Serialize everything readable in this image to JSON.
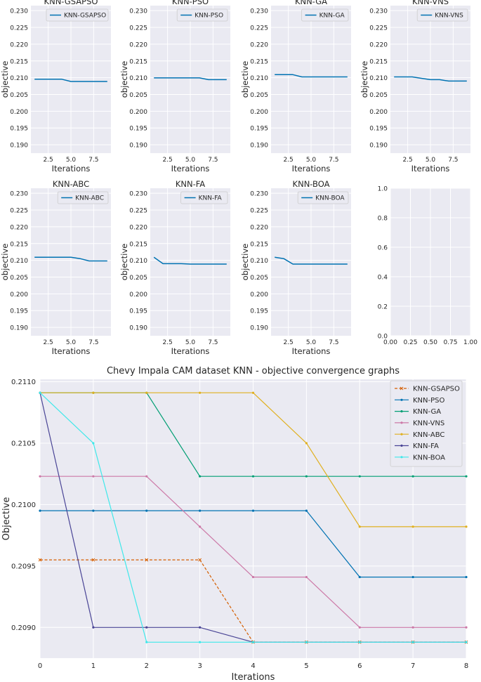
{
  "chart_data": [
    {
      "type": "line",
      "title": "KNN-GSAPSO",
      "xlabel": "Iterations",
      "ylabel": "objective",
      "xlim": [
        0.6,
        9.4
      ],
      "ylim": [
        0.1875,
        0.2315
      ],
      "xticks": [
        2.5,
        5.0,
        7.5
      ],
      "xtick_labels": [
        "2.5",
        "5.0",
        "7.5"
      ],
      "yticks": [
        0.19,
        0.195,
        0.2,
        0.205,
        0.21,
        0.215,
        0.22,
        0.225,
        0.23
      ],
      "ytick_labels": [
        "0.190",
        "0.195",
        "0.200",
        "0.205",
        "0.210",
        "0.215",
        "0.220",
        "0.225",
        "0.230"
      ],
      "legend_position": "top-right",
      "series": [
        {
          "name": "KNN-GSAPSO",
          "color": "#0072b2",
          "x": [
            1,
            2,
            3,
            4,
            5,
            6,
            7,
            8,
            9
          ],
          "y": [
            0.20955,
            0.20955,
            0.20955,
            0.20955,
            0.20888,
            0.20888,
            0.20888,
            0.20888,
            0.20888
          ]
        }
      ]
    },
    {
      "type": "line",
      "title": "KNN-PSO",
      "xlabel": "Iterations",
      "ylabel": "objective",
      "xlim": [
        0.6,
        9.4
      ],
      "ylim": [
        0.1875,
        0.2315
      ],
      "xticks": [
        2.5,
        5.0,
        7.5
      ],
      "xtick_labels": [
        "2.5",
        "5.0",
        "7.5"
      ],
      "yticks": [
        0.19,
        0.195,
        0.2,
        0.205,
        0.21,
        0.215,
        0.22,
        0.225,
        0.23
      ],
      "ytick_labels": [
        "0.190",
        "0.195",
        "0.200",
        "0.205",
        "0.210",
        "0.215",
        "0.220",
        "0.225",
        "0.230"
      ],
      "legend_position": "top-right",
      "series": [
        {
          "name": "KNN-PSO",
          "color": "#0072b2",
          "x": [
            1,
            2,
            3,
            4,
            5,
            6,
            7,
            8,
            9
          ],
          "y": [
            0.20995,
            0.20995,
            0.20995,
            0.20995,
            0.20995,
            0.20995,
            0.20941,
            0.20941,
            0.20941
          ]
        }
      ]
    },
    {
      "type": "line",
      "title": "KNN-GA",
      "xlabel": "Iterations",
      "ylabel": "objective",
      "xlim": [
        0.6,
        9.4
      ],
      "ylim": [
        0.1875,
        0.2315
      ],
      "xticks": [
        2.5,
        5.0,
        7.5
      ],
      "xtick_labels": [
        "2.5",
        "5.0",
        "7.5"
      ],
      "yticks": [
        0.19,
        0.195,
        0.2,
        0.205,
        0.21,
        0.215,
        0.22,
        0.225,
        0.23
      ],
      "ytick_labels": [
        "0.190",
        "0.195",
        "0.200",
        "0.205",
        "0.210",
        "0.215",
        "0.220",
        "0.225",
        "0.230"
      ],
      "legend_position": "top-right",
      "series": [
        {
          "name": "KNN-GA",
          "color": "#0072b2",
          "x": [
            1,
            2,
            3,
            4,
            5,
            6,
            7,
            8,
            9
          ],
          "y": [
            0.21091,
            0.21091,
            0.21091,
            0.21023,
            0.21023,
            0.21023,
            0.21023,
            0.21023,
            0.21023
          ]
        }
      ]
    },
    {
      "type": "line",
      "title": "KNN-VNS",
      "xlabel": "Iterations",
      "ylabel": "objective",
      "xlim": [
        0.6,
        9.4
      ],
      "ylim": [
        0.1875,
        0.2315
      ],
      "xticks": [
        2.5,
        5.0,
        7.5
      ],
      "xtick_labels": [
        "2.5",
        "5.0",
        "7.5"
      ],
      "yticks": [
        0.19,
        0.195,
        0.2,
        0.205,
        0.21,
        0.215,
        0.22,
        0.225,
        0.23
      ],
      "ytick_labels": [
        "0.190",
        "0.195",
        "0.200",
        "0.205",
        "0.210",
        "0.215",
        "0.220",
        "0.225",
        "0.230"
      ],
      "legend_position": "top-right",
      "series": [
        {
          "name": "KNN-VNS",
          "color": "#0072b2",
          "x": [
            1,
            2,
            3,
            4,
            5,
            6,
            7,
            8,
            9
          ],
          "y": [
            0.21023,
            0.21023,
            0.21023,
            0.20982,
            0.20941,
            0.20941,
            0.209,
            0.209,
            0.209
          ]
        }
      ]
    },
    {
      "type": "line",
      "title": "KNN-ABC",
      "xlabel": "Iterations",
      "ylabel": "objective",
      "xlim": [
        0.6,
        9.4
      ],
      "ylim": [
        0.1875,
        0.2315
      ],
      "xticks": [
        2.5,
        5.0,
        7.5
      ],
      "xtick_labels": [
        "2.5",
        "5.0",
        "7.5"
      ],
      "yticks": [
        0.19,
        0.195,
        0.2,
        0.205,
        0.21,
        0.215,
        0.22,
        0.225,
        0.23
      ],
      "ytick_labels": [
        "0.190",
        "0.195",
        "0.200",
        "0.205",
        "0.210",
        "0.215",
        "0.220",
        "0.225",
        "0.230"
      ],
      "legend_position": "top-right",
      "series": [
        {
          "name": "KNN-ABC",
          "color": "#0072b2",
          "x": [
            1,
            2,
            3,
            4,
            5,
            6,
            7,
            8,
            9
          ],
          "y": [
            0.21091,
            0.21091,
            0.21091,
            0.21091,
            0.21091,
            0.2105,
            0.20982,
            0.20982,
            0.20982
          ]
        }
      ]
    },
    {
      "type": "line",
      "title": "KNN-FA",
      "xlabel": "Iterations",
      "ylabel": "objective",
      "xlim": [
        0.6,
        9.4
      ],
      "ylim": [
        0.1875,
        0.2315
      ],
      "xticks": [
        2.5,
        5.0,
        7.5
      ],
      "xtick_labels": [
        "2.5",
        "5.0",
        "7.5"
      ],
      "yticks": [
        0.19,
        0.195,
        0.2,
        0.205,
        0.21,
        0.215,
        0.22,
        0.225,
        0.23
      ],
      "ytick_labels": [
        "0.190",
        "0.195",
        "0.200",
        "0.205",
        "0.210",
        "0.215",
        "0.220",
        "0.225",
        "0.230"
      ],
      "legend_position": "top-right",
      "series": [
        {
          "name": "KNN-FA",
          "color": "#0072b2",
          "x": [
            1,
            2,
            3,
            4,
            5,
            6,
            7,
            8,
            9
          ],
          "y": [
            0.21091,
            0.209,
            0.209,
            0.209,
            0.20888,
            0.20888,
            0.20888,
            0.20888,
            0.20888
          ]
        }
      ]
    },
    {
      "type": "line",
      "title": "KNN-BOA",
      "xlabel": "Iterations",
      "ylabel": "objective",
      "xlim": [
        0.6,
        9.4
      ],
      "ylim": [
        0.1875,
        0.2315
      ],
      "xticks": [
        2.5,
        5.0,
        7.5
      ],
      "xtick_labels": [
        "2.5",
        "5.0",
        "7.5"
      ],
      "yticks": [
        0.19,
        0.195,
        0.2,
        0.205,
        0.21,
        0.215,
        0.22,
        0.225,
        0.23
      ],
      "ytick_labels": [
        "0.190",
        "0.195",
        "0.200",
        "0.205",
        "0.210",
        "0.215",
        "0.220",
        "0.225",
        "0.230"
      ],
      "legend_position": "top-right",
      "series": [
        {
          "name": "KNN-BOA",
          "color": "#0072b2",
          "x": [
            1,
            2,
            3,
            4,
            5,
            6,
            7,
            8,
            9
          ],
          "y": [
            0.21091,
            0.2105,
            0.20888,
            0.20888,
            0.20888,
            0.20888,
            0.20888,
            0.20888,
            0.20888
          ]
        }
      ]
    },
    {
      "type": "line",
      "title": "",
      "xlabel": "",
      "ylabel": "",
      "xlim": [
        0,
        1
      ],
      "ylim": [
        0,
        1
      ],
      "xticks": [
        0,
        0.25,
        0.5,
        0.75,
        1.0
      ],
      "xtick_labels": [
        "0.00",
        "0.25",
        "0.50",
        "0.75",
        "1.00"
      ],
      "yticks": [
        0,
        0.2,
        0.4,
        0.6,
        0.8,
        1.0
      ],
      "ytick_labels": [
        "0.0",
        "0.2",
        "0.4",
        "0.6",
        "0.8",
        "1.0"
      ],
      "series": []
    },
    {
      "type": "line",
      "title": "Chevy Impala CAM dataset KNN -  objective convergence graphs",
      "xlabel": "Iterations",
      "ylabel": "Objective",
      "xlim": [
        0,
        8
      ],
      "ylim": [
        0.20875,
        0.21102
      ],
      "xticks": [
        0,
        1,
        2,
        3,
        4,
        5,
        6,
        7,
        8
      ],
      "xtick_labels": [
        "0",
        "1",
        "2",
        "3",
        "4",
        "5",
        "6",
        "7",
        "8"
      ],
      "yticks": [
        0.209,
        0.2095,
        0.21,
        0.2105,
        0.211
      ],
      "ytick_labels": [
        "0.2090",
        "0.2095",
        "0.2100",
        "0.2105",
        "0.2110"
      ],
      "legend_position": "top-right",
      "series": [
        {
          "name": "KNN-GSAPSO",
          "color": "#d55e00",
          "dashed": true,
          "marker": "x",
          "x": [
            0,
            1,
            2,
            3,
            4,
            5,
            6,
            7,
            8
          ],
          "y": [
            0.20955,
            0.20955,
            0.20955,
            0.20955,
            0.20888,
            0.20888,
            0.20888,
            0.20888,
            0.20888
          ]
        },
        {
          "name": "KNN-PSO",
          "color": "#0072b2",
          "marker": "dot",
          "x": [
            0,
            1,
            2,
            3,
            4,
            5,
            6,
            7,
            8
          ],
          "y": [
            0.20995,
            0.20995,
            0.20995,
            0.20995,
            0.20995,
            0.20995,
            0.20941,
            0.20941,
            0.20941
          ]
        },
        {
          "name": "KNN-GA",
          "color": "#009e73",
          "marker": "dot",
          "x": [
            0,
            1,
            2,
            3,
            4,
            5,
            6,
            7,
            8
          ],
          "y": [
            0.21091,
            0.21091,
            0.21091,
            0.21023,
            0.21023,
            0.21023,
            0.21023,
            0.21023,
            0.21023
          ]
        },
        {
          "name": "KNN-VNS",
          "color": "#cc79a7",
          "marker": "dot",
          "x": [
            0,
            1,
            2,
            3,
            4,
            5,
            6,
            7,
            8
          ],
          "y": [
            0.21023,
            0.21023,
            0.21023,
            0.20982,
            0.20941,
            0.20941,
            0.209,
            0.209,
            0.209
          ]
        },
        {
          "name": "KNN-ABC",
          "color": "#e0b020",
          "marker": "dot",
          "x": [
            0,
            1,
            2,
            3,
            4,
            5,
            6,
            7,
            8
          ],
          "y": [
            0.21091,
            0.21091,
            0.21091,
            0.21091,
            0.21091,
            0.2105,
            0.20982,
            0.20982,
            0.20982
          ]
        },
        {
          "name": "KNN-FA",
          "color": "#4a4596",
          "marker": "dot",
          "x": [
            0,
            1,
            2,
            3,
            4,
            5,
            6,
            7,
            8
          ],
          "y": [
            0.21091,
            0.209,
            0.209,
            0.209,
            0.20888,
            0.20888,
            0.20888,
            0.20888,
            0.20888
          ]
        },
        {
          "name": "KNN-BOA",
          "color": "#3fe8ea",
          "marker": "dot",
          "x": [
            0,
            1,
            2,
            3,
            4,
            5,
            6,
            7,
            8
          ],
          "y": [
            0.21091,
            0.2105,
            0.20888,
            0.20888,
            0.20888,
            0.20888,
            0.20888,
            0.20888,
            0.20888
          ]
        }
      ]
    }
  ]
}
